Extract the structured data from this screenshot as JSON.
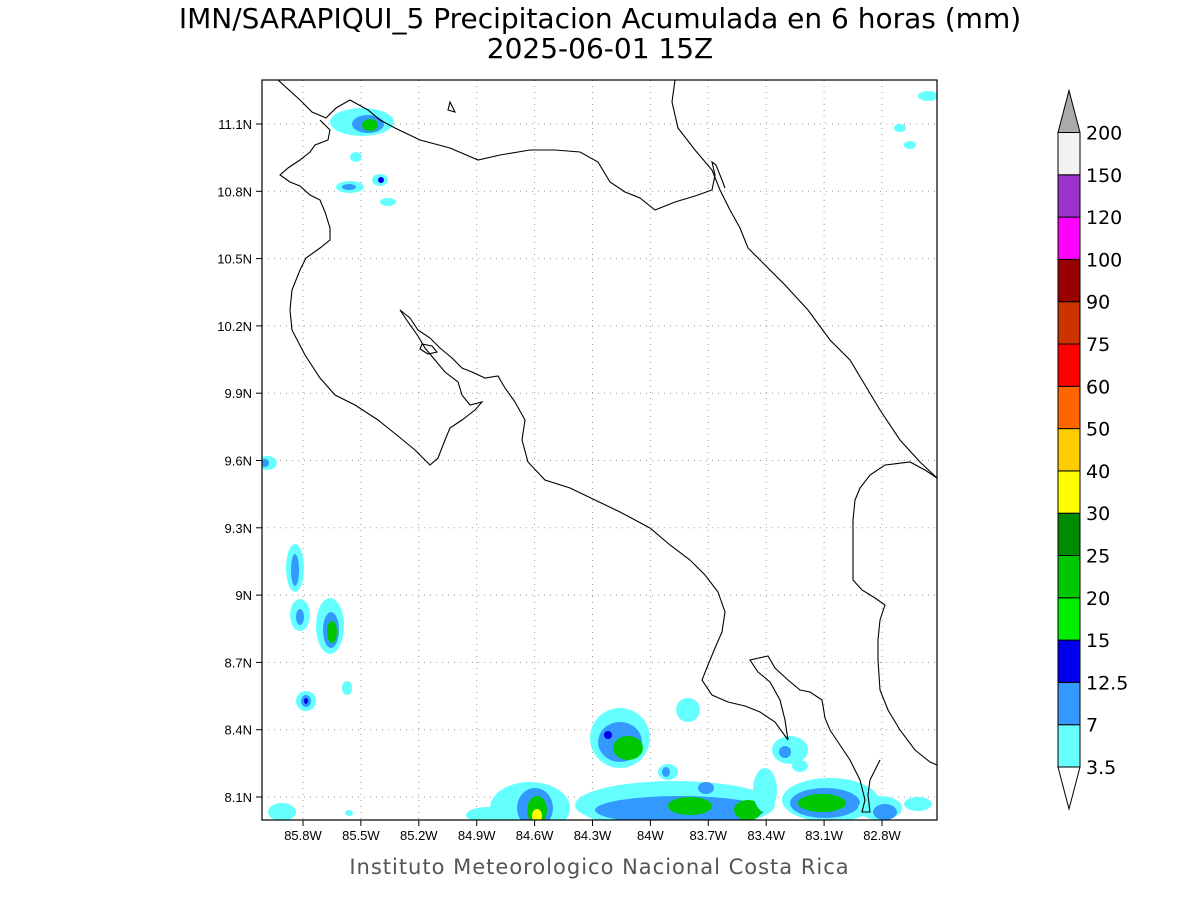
{
  "title_line1": "IMN/SARAPIQUI_5 Precipitacion Acumulada en 6 horas (mm)",
  "title_line2": "2025-06-01 15Z",
  "credit": "Instituto Meteorologico Nacional Costa Rica",
  "lat_labels": [
    "11.1N",
    "10.8N",
    "10.5N",
    "10.2N",
    "9.9N",
    "9.6N",
    "9.3N",
    "9N",
    "8.7N",
    "8.4N",
    "8.1N"
  ],
  "lon_labels": [
    "85.8W",
    "85.5W",
    "85.2W",
    "84.9W",
    "84.6W",
    "84.3W",
    "84W",
    "83.7W",
    "83.4W",
    "83.1W",
    "82.8W"
  ],
  "colorbar": {
    "labels": [
      "3.5",
      "7",
      "12.5",
      "15",
      "20",
      "25",
      "30",
      "40",
      "50",
      "60",
      "75",
      "90",
      "100",
      "120",
      "150",
      "200"
    ],
    "colors": [
      "#66ffff",
      "#3399ff",
      "#0000ee",
      "#00ee00",
      "#00c800",
      "#008c00",
      "#ffff00",
      "#ffcc00",
      "#ff6600",
      "#ff0000",
      "#cc3300",
      "#990000",
      "#ff00ff",
      "#9933cc",
      "#f2f2f2",
      "#aaaaaa"
    ]
  }
}
